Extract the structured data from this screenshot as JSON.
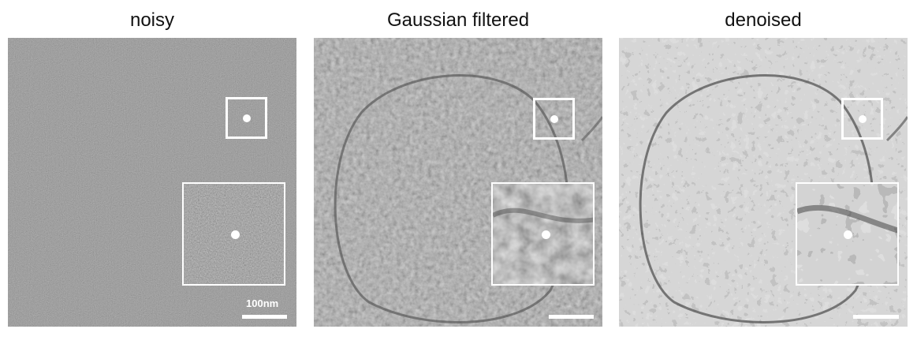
{
  "panels": {
    "noisy": {
      "title": "noisy",
      "scale_label": "100nm"
    },
    "gaussian": {
      "title": "Gaussian filtered"
    },
    "denoised": {
      "title": "denoised"
    }
  }
}
